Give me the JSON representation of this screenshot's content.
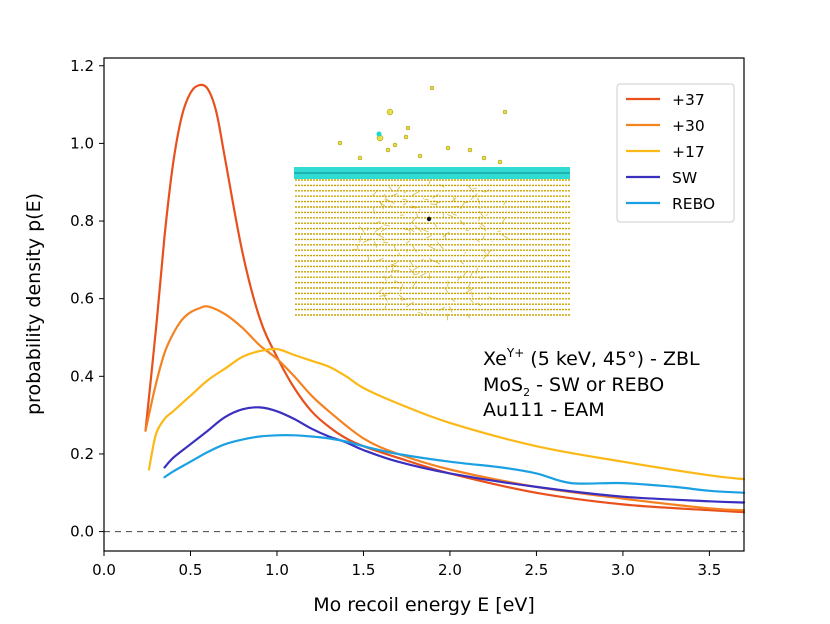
{
  "chart_data": {
    "type": "line",
    "xlabel": "Mo recoil energy E [eV]",
    "ylabel": "probability density p(E)",
    "xlim": [
      0.0,
      3.7
    ],
    "ylim": [
      -0.05,
      1.22
    ],
    "xticks": [
      "0.0",
      "0.5",
      "1.0",
      "1.5",
      "2.0",
      "2.5",
      "3.0",
      "3.5"
    ],
    "yticks": [
      "0.0",
      "0.2",
      "0.4",
      "0.6",
      "0.8",
      "1.0",
      "1.2"
    ],
    "reference_line": {
      "y": 0.0,
      "style": "dashed"
    },
    "legend_position": "top-right",
    "series": [
      {
        "name": "+37",
        "color": "#e8501c",
        "x": [
          0.24,
          0.3,
          0.35,
          0.4,
          0.45,
          0.5,
          0.55,
          0.6,
          0.65,
          0.7,
          0.8,
          0.9,
          1.0,
          1.1,
          1.2,
          1.3,
          1.4,
          1.5,
          1.7,
          2.0,
          2.5,
          3.0,
          3.5,
          3.7
        ],
        "y": [
          0.26,
          0.52,
          0.76,
          0.95,
          1.07,
          1.13,
          1.15,
          1.14,
          1.08,
          0.96,
          0.72,
          0.55,
          0.45,
          0.37,
          0.31,
          0.27,
          0.24,
          0.22,
          0.19,
          0.15,
          0.1,
          0.07,
          0.055,
          0.05
        ]
      },
      {
        "name": "+30",
        "color": "#f58220",
        "x": [
          0.24,
          0.3,
          0.35,
          0.4,
          0.45,
          0.5,
          0.55,
          0.6,
          0.7,
          0.8,
          0.9,
          1.0,
          1.1,
          1.2,
          1.3,
          1.5,
          1.7,
          2.0,
          2.5,
          3.0,
          3.5,
          3.7
        ],
        "y": [
          0.26,
          0.38,
          0.46,
          0.51,
          0.545,
          0.565,
          0.575,
          0.58,
          0.56,
          0.525,
          0.48,
          0.445,
          0.4,
          0.35,
          0.31,
          0.24,
          0.2,
          0.16,
          0.115,
          0.085,
          0.06,
          0.055
        ]
      },
      {
        "name": "+17",
        "color": "#fbb917",
        "x": [
          0.26,
          0.3,
          0.35,
          0.4,
          0.5,
          0.6,
          0.7,
          0.8,
          0.9,
          1.0,
          1.1,
          1.2,
          1.3,
          1.4,
          1.5,
          1.7,
          2.0,
          2.5,
          3.0,
          3.5,
          3.7
        ],
        "y": [
          0.16,
          0.25,
          0.29,
          0.31,
          0.35,
          0.39,
          0.42,
          0.45,
          0.465,
          0.47,
          0.455,
          0.44,
          0.425,
          0.4,
          0.37,
          0.33,
          0.28,
          0.22,
          0.18,
          0.145,
          0.135
        ]
      },
      {
        "name": "SW",
        "color": "#3b2fc0",
        "x": [
          0.35,
          0.4,
          0.5,
          0.6,
          0.7,
          0.8,
          0.9,
          1.0,
          1.1,
          1.2,
          1.3,
          1.4,
          1.5,
          1.7,
          2.0,
          2.5,
          3.0,
          3.5,
          3.7
        ],
        "y": [
          0.165,
          0.19,
          0.225,
          0.26,
          0.295,
          0.315,
          0.32,
          0.31,
          0.29,
          0.265,
          0.245,
          0.23,
          0.21,
          0.18,
          0.15,
          0.115,
          0.09,
          0.078,
          0.075
        ]
      },
      {
        "name": "REBO",
        "color": "#1ba1e2",
        "x": [
          0.35,
          0.4,
          0.5,
          0.6,
          0.7,
          0.8,
          0.9,
          1.0,
          1.1,
          1.2,
          1.3,
          1.4,
          1.5,
          1.7,
          2.0,
          2.3,
          2.5,
          2.7,
          3.0,
          3.3,
          3.5,
          3.7
        ],
        "y": [
          0.14,
          0.155,
          0.18,
          0.205,
          0.225,
          0.237,
          0.245,
          0.248,
          0.248,
          0.245,
          0.24,
          0.232,
          0.22,
          0.2,
          0.18,
          0.165,
          0.15,
          0.125,
          0.125,
          0.115,
          0.105,
          0.1
        ]
      }
    ],
    "annotations": {
      "line1_main": "Xe",
      "line1_sup": "Y+",
      "line1_rest": " (5 keV, 45°)  - ZBL",
      "line2_main": "MoS",
      "line2_sub": "2",
      "line2_rest": " - SW or REBO",
      "line3": "Au111 - EAM"
    },
    "inset_image": "molecular-dynamics simulation snapshot of MoS2 layer on Au(111) slab",
    "colors": {
      "inset_gold": "#c9a400",
      "inset_cyan": "#1bd8cf",
      "axis": "#000000"
    }
  }
}
